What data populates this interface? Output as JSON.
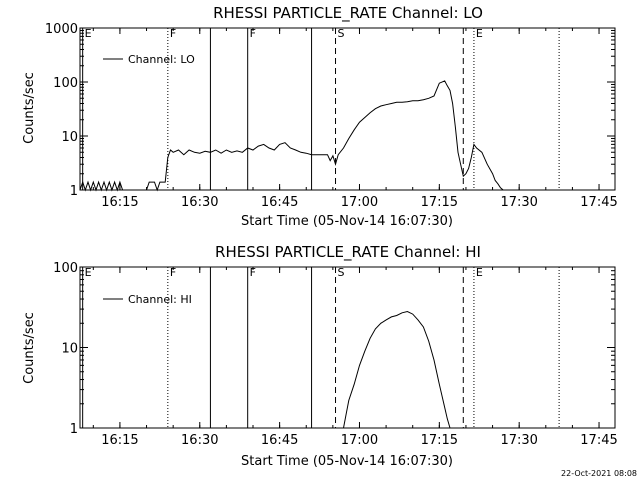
{
  "timestamp": "22-Oct-2021 08:08",
  "chart_data": [
    {
      "type": "line",
      "title": "RHESSI PARTICLE_RATE Channel: LO",
      "xlabel": "Start Time (05-Nov-14 16:07:30)",
      "ylabel": "Counts/sec",
      "yscale": "log",
      "ylim": [
        1,
        1000
      ],
      "xlim": [
        "16:07:30",
        "17:48:00"
      ],
      "grid": false,
      "legend_placement": "top-left",
      "x_ticks": [
        "16:15",
        "16:30",
        "16:45",
        "17:00",
        "17:15",
        "17:30",
        "17:45"
      ],
      "y_ticks": [
        "1",
        "10",
        "100",
        "1000"
      ],
      "flags": [
        {
          "label": "E",
          "time": "16:08:00",
          "style": "solid"
        },
        {
          "label": "F",
          "time": "16:24:00",
          "style": "dotted"
        },
        {
          "label": "",
          "time": "16:32:00",
          "style": "solid"
        },
        {
          "label": "F",
          "time": "16:39:00",
          "style": "solid"
        },
        {
          "label": "",
          "time": "16:51:00",
          "style": "solid"
        },
        {
          "label": "S",
          "time": "16:55:30",
          "style": "dashed"
        },
        {
          "label": "",
          "time": "17:19:30",
          "style": "dashed"
        },
        {
          "label": "E",
          "time": "17:21:30",
          "style": "dotted"
        },
        {
          "label": "",
          "time": "17:37:30",
          "style": "dotted"
        }
      ],
      "series": [
        {
          "name": "Channel: LO",
          "x": [
            "16:07:30",
            "16:08:00",
            "16:08:30",
            "16:09:00",
            "16:09:30",
            "16:10:00",
            "16:10:30",
            "16:11:00",
            "16:11:30",
            "16:12:00",
            "16:12:30",
            "16:13:00",
            "16:13:30",
            "16:14:00",
            "16:14:30",
            "16:15:00",
            "16:15:30",
            "16:16:00",
            "16:20:00",
            "16:20:30",
            "16:21:00",
            "16:21:30",
            "16:22:00",
            "16:22:30",
            "16:23:00",
            "16:23:30",
            "16:24:00",
            "16:24:30",
            "16:25:00",
            "16:26:00",
            "16:27:00",
            "16:28:00",
            "16:29:00",
            "16:30:00",
            "16:31:00",
            "16:32:00",
            "16:33:00",
            "16:34:00",
            "16:35:00",
            "16:36:00",
            "16:37:00",
            "16:38:00",
            "16:39:00",
            "16:40:00",
            "16:41:00",
            "16:42:00",
            "16:43:00",
            "16:44:00",
            "16:45:00",
            "16:46:00",
            "16:47:00",
            "16:48:00",
            "16:49:00",
            "16:50:00",
            "16:51:00",
            "16:52:00",
            "16:53:00",
            "16:54:00",
            "16:54:30",
            "16:55:00",
            "16:55:30",
            "16:56:00",
            "16:57:00",
            "16:58:00",
            "16:59:00",
            "17:00:00",
            "17:01:00",
            "17:02:00",
            "17:03:00",
            "17:04:00",
            "17:05:00",
            "17:06:00",
            "17:07:00",
            "17:08:00",
            "17:09:00",
            "17:10:00",
            "17:11:00",
            "17:12:00",
            "17:13:00",
            "17:14:00",
            "17:15:00",
            "17:16:00",
            "17:16:30",
            "17:17:00",
            "17:17:30",
            "17:18:00",
            "17:18:30",
            "17:19:00",
            "17:19:30",
            "17:20:00",
            "17:20:30",
            "17:21:00",
            "17:21:30",
            "17:22:00",
            "17:23:00",
            "17:24:00",
            "17:25:00",
            "17:25:30",
            "17:26:00",
            "17:26:30",
            "17:27:00"
          ],
          "y": [
            1,
            1.4,
            1,
            1.4,
            1,
            1.4,
            1,
            1.4,
            1,
            1.4,
            1,
            1.4,
            1,
            1.4,
            1,
            1.4,
            1,
            1,
            1,
            1.4,
            1.4,
            1.4,
            1,
            1.4,
            1.4,
            1.4,
            4,
            5.5,
            5,
            5.5,
            4.5,
            5.5,
            5,
            4.8,
            5.2,
            5,
            5.5,
            4.8,
            5.5,
            5,
            5.3,
            5,
            6,
            5.5,
            6.5,
            7,
            6,
            5.5,
            7,
            7.5,
            6,
            5.5,
            5,
            4.8,
            4.5,
            4.5,
            4.5,
            4.5,
            3.5,
            4.3,
            3,
            4.5,
            6,
            9,
            13,
            18,
            22,
            27,
            32,
            36,
            38,
            40,
            42,
            42,
            43,
            45,
            45,
            47,
            50,
            55,
            95,
            105,
            85,
            70,
            40,
            15,
            5,
            3,
            1.8,
            2,
            2.5,
            4,
            7,
            6,
            5,
            3,
            2,
            1.5,
            1.3,
            1.1,
            1
          ]
        }
      ]
    },
    {
      "type": "line",
      "title": "RHESSI PARTICLE_RATE Channel: HI",
      "xlabel": "Start Time (05-Nov-14 16:07:30)",
      "ylabel": "Counts/sec",
      "yscale": "log",
      "ylim": [
        1,
        100
      ],
      "xlim": [
        "16:07:30",
        "17:48:00"
      ],
      "grid": false,
      "legend_placement": "top-left",
      "x_ticks": [
        "16:15",
        "16:30",
        "16:45",
        "17:00",
        "17:15",
        "17:30",
        "17:45"
      ],
      "y_ticks": [
        "1",
        "10",
        "100"
      ],
      "flags": [
        {
          "label": "E",
          "time": "16:08:00",
          "style": "solid"
        },
        {
          "label": "F",
          "time": "16:24:00",
          "style": "dotted"
        },
        {
          "label": "",
          "time": "16:32:00",
          "style": "solid"
        },
        {
          "label": "F",
          "time": "16:39:00",
          "style": "solid"
        },
        {
          "label": "",
          "time": "16:51:00",
          "style": "solid"
        },
        {
          "label": "S",
          "time": "16:55:30",
          "style": "dashed"
        },
        {
          "label": "",
          "time": "17:19:30",
          "style": "dashed"
        },
        {
          "label": "E",
          "time": "17:21:30",
          "style": "dotted"
        },
        {
          "label": "",
          "time": "17:37:30",
          "style": "dotted"
        }
      ],
      "series": [
        {
          "name": "Channel: HI",
          "x": [
            "16:57:00",
            "16:57:30",
            "16:58:00",
            "16:59:00",
            "17:00:00",
            "17:01:00",
            "17:02:00",
            "17:03:00",
            "17:04:00",
            "17:05:00",
            "17:06:00",
            "17:07:00",
            "17:08:00",
            "17:09:00",
            "17:10:00",
            "17:11:00",
            "17:12:00",
            "17:13:00",
            "17:14:00",
            "17:15:00",
            "17:16:00",
            "17:16:30",
            "17:17:00"
          ],
          "y": [
            1,
            1.5,
            2.2,
            3.5,
            6,
            9,
            13,
            17,
            20,
            22,
            24,
            25,
            27,
            28,
            26,
            22,
            18,
            12,
            7,
            3.5,
            1.8,
            1.3,
            1
          ]
        }
      ]
    }
  ]
}
